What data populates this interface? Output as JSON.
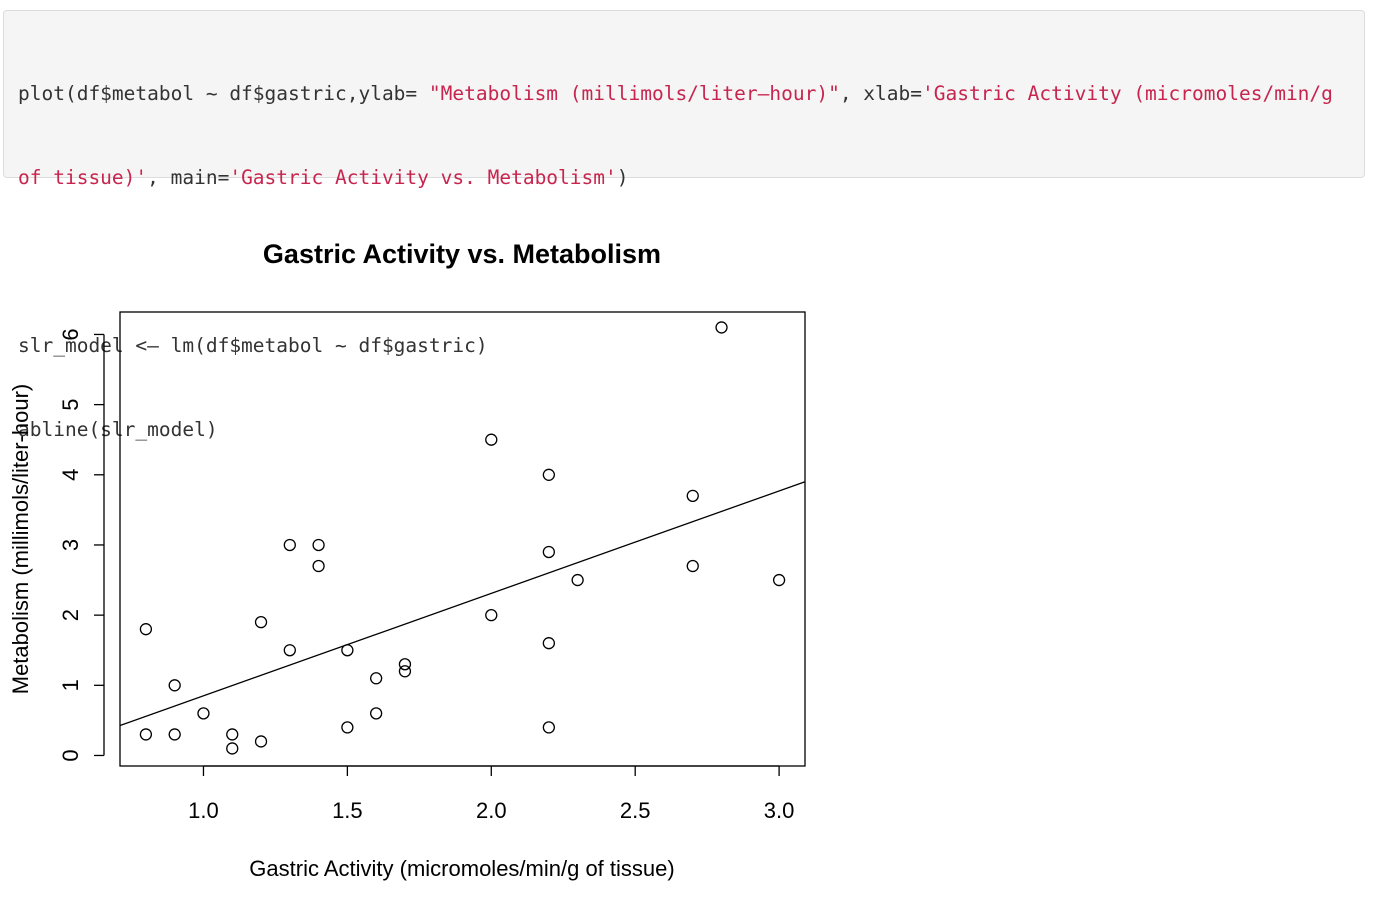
{
  "code": {
    "lines": [
      [
        {
          "t": "plot(df$metabol ~ df$gastric,ylab= ",
          "s": false
        },
        {
          "t": "\"Metabolism (millimols/liter–hour)\"",
          "s": true
        },
        {
          "t": ", xlab=",
          "s": false
        },
        {
          "t": "'Gastric Activity (micromoles/min/g",
          "s": true
        }
      ],
      [
        {
          "t": "of tissue)'",
          "s": true
        },
        {
          "t": ", main=",
          "s": false
        },
        {
          "t": "'Gastric Activity vs. Metabolism'",
          "s": true
        },
        {
          "t": ")",
          "s": false
        }
      ],
      [],
      [
        {
          "t": "slr_model <– lm(df$metabol ~ df$gastric)",
          "s": false
        }
      ],
      [
        {
          "t": "abline(slr_model)",
          "s": false
        }
      ]
    ]
  },
  "chart_data": {
    "type": "scatter",
    "title": "Gastric Activity vs. Metabolism",
    "xlabel": "Gastric Activity (micromoles/min/g of tissue)",
    "ylabel": "Metabolism (millimols/liter-hour)",
    "xlim": [
      0.71,
      3.09
    ],
    "ylim": [
      -0.15,
      6.32
    ],
    "xticks": [
      1.0,
      1.5,
      2.0,
      2.5,
      3.0
    ],
    "xtick_labels": [
      "1.0",
      "1.5",
      "2.0",
      "2.5",
      "3.0"
    ],
    "yticks": [
      0,
      1,
      2,
      3,
      4,
      5,
      6
    ],
    "ytick_labels": [
      "0",
      "1",
      "2",
      "3",
      "4",
      "5",
      "6"
    ],
    "grid": false,
    "legend": "none",
    "points": [
      {
        "x": 0.8,
        "y": 1.8
      },
      {
        "x": 0.8,
        "y": 0.3
      },
      {
        "x": 0.9,
        "y": 1.0
      },
      {
        "x": 0.9,
        "y": 0.3
      },
      {
        "x": 1.0,
        "y": 0.6
      },
      {
        "x": 1.1,
        "y": 0.3
      },
      {
        "x": 1.1,
        "y": 0.1
      },
      {
        "x": 1.2,
        "y": 1.9
      },
      {
        "x": 1.2,
        "y": 0.2
      },
      {
        "x": 1.3,
        "y": 3.0
      },
      {
        "x": 1.3,
        "y": 1.5
      },
      {
        "x": 1.4,
        "y": 3.0
      },
      {
        "x": 1.4,
        "y": 2.7
      },
      {
        "x": 1.5,
        "y": 1.5
      },
      {
        "x": 1.5,
        "y": 0.4
      },
      {
        "x": 1.6,
        "y": 1.1
      },
      {
        "x": 1.6,
        "y": 0.6
      },
      {
        "x": 1.7,
        "y": 1.3
      },
      {
        "x": 1.7,
        "y": 1.2
      },
      {
        "x": 2.0,
        "y": 4.5
      },
      {
        "x": 2.0,
        "y": 2.0
      },
      {
        "x": 2.2,
        "y": 4.0
      },
      {
        "x": 2.2,
        "y": 2.9
      },
      {
        "x": 2.2,
        "y": 1.6
      },
      {
        "x": 2.2,
        "y": 0.4
      },
      {
        "x": 2.3,
        "y": 2.5
      },
      {
        "x": 2.7,
        "y": 3.7
      },
      {
        "x": 2.7,
        "y": 2.7
      },
      {
        "x": 2.8,
        "y": 6.1
      },
      {
        "x": 3.0,
        "y": 2.5
      }
    ],
    "regression_line": {
      "intercept": -0.61,
      "slope": 1.46,
      "x_range": [
        0.71,
        3.09
      ]
    }
  }
}
